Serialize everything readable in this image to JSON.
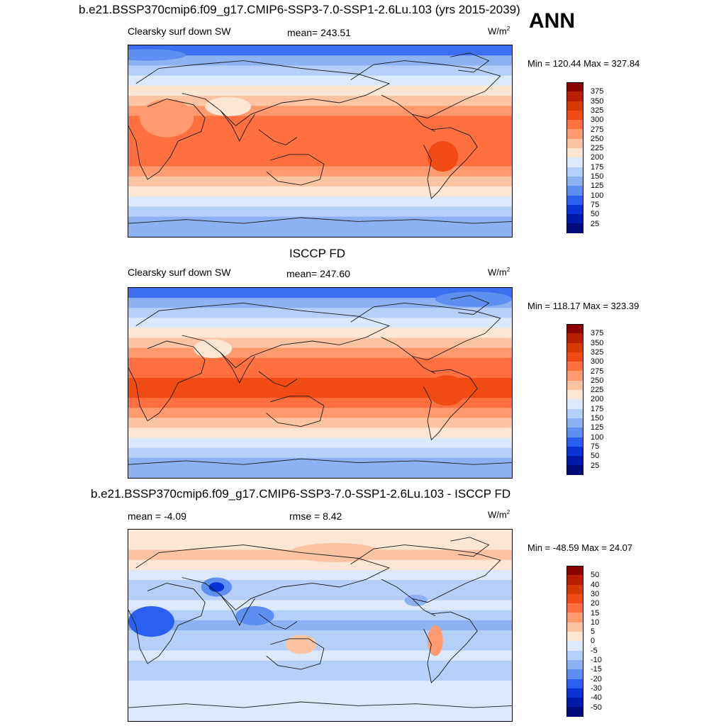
{
  "header": {
    "main_title": "b.e21.BSSP370cmip6.f09_g17.CMIP6-SSP3-7.0-SSP1-2.6Lu.103 (yrs 2015-2039)",
    "season": "ANN"
  },
  "panels": [
    {
      "title": "",
      "left_label": "Clearsky surf down SW",
      "center_label": "mean= 243.51",
      "units_base": "W/m",
      "units_exp": "2",
      "minmax": "Min = 120.44 Max = 327.84",
      "levels": [
        "375",
        "350",
        "325",
        "300",
        "275",
        "250",
        "225",
        "200",
        "175",
        "150",
        "125",
        "100",
        "75",
        "50",
        "25"
      ],
      "colors": [
        "#8b0000",
        "#b81e00",
        "#d63a00",
        "#f04b15",
        "#ff7040",
        "#fe9a6e",
        "#fdc4a3",
        "#fde6d2",
        "#dbe9fb",
        "#b4cff8",
        "#8db2f2",
        "#5e8ef0",
        "#2b5ff0",
        "#0a33d6",
        "#0019a6",
        "#000a7a"
      ]
    },
    {
      "title": "ISCCP FD",
      "left_label": "Clearsky surf down SW",
      "center_label": "mean= 247.60",
      "units_base": "W/m",
      "units_exp": "2",
      "minmax": "Min = 118.17 Max = 323.39",
      "levels": [
        "375",
        "350",
        "325",
        "300",
        "275",
        "250",
        "225",
        "200",
        "175",
        "150",
        "125",
        "100",
        "75",
        "50",
        "25"
      ],
      "colors": [
        "#8b0000",
        "#b81e00",
        "#d63a00",
        "#f04b15",
        "#ff7040",
        "#fe9a6e",
        "#fdc4a3",
        "#fde6d2",
        "#dbe9fb",
        "#b4cff8",
        "#8db2f2",
        "#5e8ef0",
        "#2b5ff0",
        "#0a33d6",
        "#0019a6",
        "#000a7a"
      ]
    },
    {
      "title": "b.e21.BSSP370cmip6.f09_g17.CMIP6-SSP3-7.0-SSP1-2.6Lu.103 - ISCCP FD",
      "left_label": "mean =  -4.09",
      "center_label": "rmse =   8.42",
      "units_base": "W/m",
      "units_exp": "2",
      "minmax": "Min = -48.59 Max =  24.07",
      "levels": [
        "50",
        "40",
        "30",
        "20",
        "15",
        "10",
        "5",
        "0",
        "-5",
        "-10",
        "-15",
        "-20",
        "-30",
        "-40",
        "-50"
      ],
      "colors": [
        "#8b0000",
        "#b81e00",
        "#d63a00",
        "#f04b15",
        "#ff7040",
        "#fe9a6e",
        "#fdc4a3",
        "#fde6d2",
        "#dbe9fb",
        "#b4cff8",
        "#8db2f2",
        "#5e8ef0",
        "#2b5ff0",
        "#0a33d6",
        "#0019a6",
        "#000a7a"
      ]
    }
  ],
  "map_fields": {
    "panel1_bands": [
      "#3d6ff0",
      "#8db2f2",
      "#b4cff8",
      "#dbe9fb",
      "#fde6d2",
      "#fdc4a3",
      "#fe9a6e",
      "#ff7040",
      "#ff7040",
      "#ff7040",
      "#ff7040",
      "#ff7040",
      "#fe9a6e",
      "#fdc4a3",
      "#fde6d2",
      "#dbe9fb",
      "#b4cff8",
      "#8db2f2",
      "#8db2f2"
    ],
    "panel2_bands": [
      "#3d6ff0",
      "#8db2f2",
      "#b4cff8",
      "#dbe9fb",
      "#fde6d2",
      "#fdc4a3",
      "#fe9a6e",
      "#ff7040",
      "#ff7040",
      "#f04b15",
      "#f04b15",
      "#ff7040",
      "#fe9a6e",
      "#fdc4a3",
      "#fde6d2",
      "#dbe9fb",
      "#b4cff8",
      "#8db2f2",
      "#8db2f2"
    ],
    "panel3_bands": [
      "#fde6d2",
      "#fde6d2",
      "#fdc4a3",
      "#fde6d2",
      "#dbe9fb",
      "#b4cff8",
      "#b4cff8",
      "#dbe9fb",
      "#b4cff8",
      "#8db2f2",
      "#b4cff8",
      "#b4cff8",
      "#dbe9fb",
      "#b4cff8",
      "#b4cff8",
      "#dbe9fb",
      "#dbe9fb",
      "#dbe9fb",
      "#dbe9fb"
    ]
  }
}
